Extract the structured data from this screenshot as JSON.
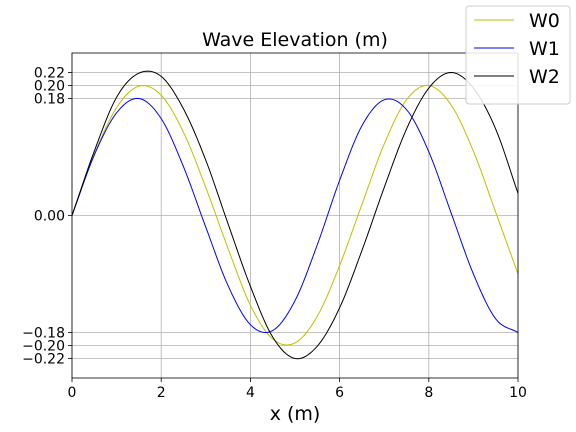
{
  "chart_data": {
    "type": "line",
    "title": "Wave Elevation (m)",
    "xlabel": "x (m)",
    "ylabel": "",
    "xlim": [
      0,
      10
    ],
    "ylim": [
      -0.25,
      0.25
    ],
    "xticks": [
      0,
      2,
      4,
      6,
      8,
      10
    ],
    "xtick_labels": [
      "0",
      "2",
      "4",
      "6",
      "8",
      "10"
    ],
    "yticks": [
      -0.22,
      -0.2,
      -0.18,
      0.0,
      0.18,
      0.2,
      0.22
    ],
    "ytick_labels": [
      "−0.22",
      "−0.20",
      "−0.18",
      "0.00",
      "0.18",
      "0.20",
      "0.22"
    ],
    "grid": true,
    "legend_position": "top-right",
    "x": [
      0,
      0.5,
      1,
      1.5,
      2,
      2.5,
      3,
      3.5,
      4,
      4.5,
      5,
      5.5,
      6,
      6.5,
      7,
      7.5,
      8,
      8.5,
      9,
      9.5,
      10
    ],
    "series": [
      {
        "name": "W0",
        "color": "#bfbf00",
        "values": [
          0.0,
          0.094,
          0.166,
          0.199,
          0.185,
          0.128,
          0.043,
          -0.051,
          -0.138,
          -0.19,
          -0.196,
          -0.155,
          -0.077,
          0.017,
          0.11,
          0.178,
          0.2,
          0.17,
          0.099,
          0.005,
          -0.09
        ]
      },
      {
        "name": "W1",
        "color": "#0000ff",
        "values": [
          0.0,
          0.093,
          0.158,
          0.18,
          0.149,
          0.075,
          -0.018,
          -0.108,
          -0.168,
          -0.177,
          -0.131,
          -0.045,
          0.054,
          0.138,
          0.178,
          0.163,
          0.098,
          0.004,
          -0.09,
          -0.159,
          -0.18
        ]
      },
      {
        "name": "W2",
        "color": "#000000",
        "values": [
          0.0,
          0.099,
          0.182,
          0.219,
          0.214,
          0.164,
          0.085,
          -0.013,
          -0.109,
          -0.187,
          -0.22,
          -0.201,
          -0.142,
          -0.054,
          0.043,
          0.133,
          0.196,
          0.22,
          0.196,
          0.133,
          0.034
        ]
      }
    ]
  }
}
